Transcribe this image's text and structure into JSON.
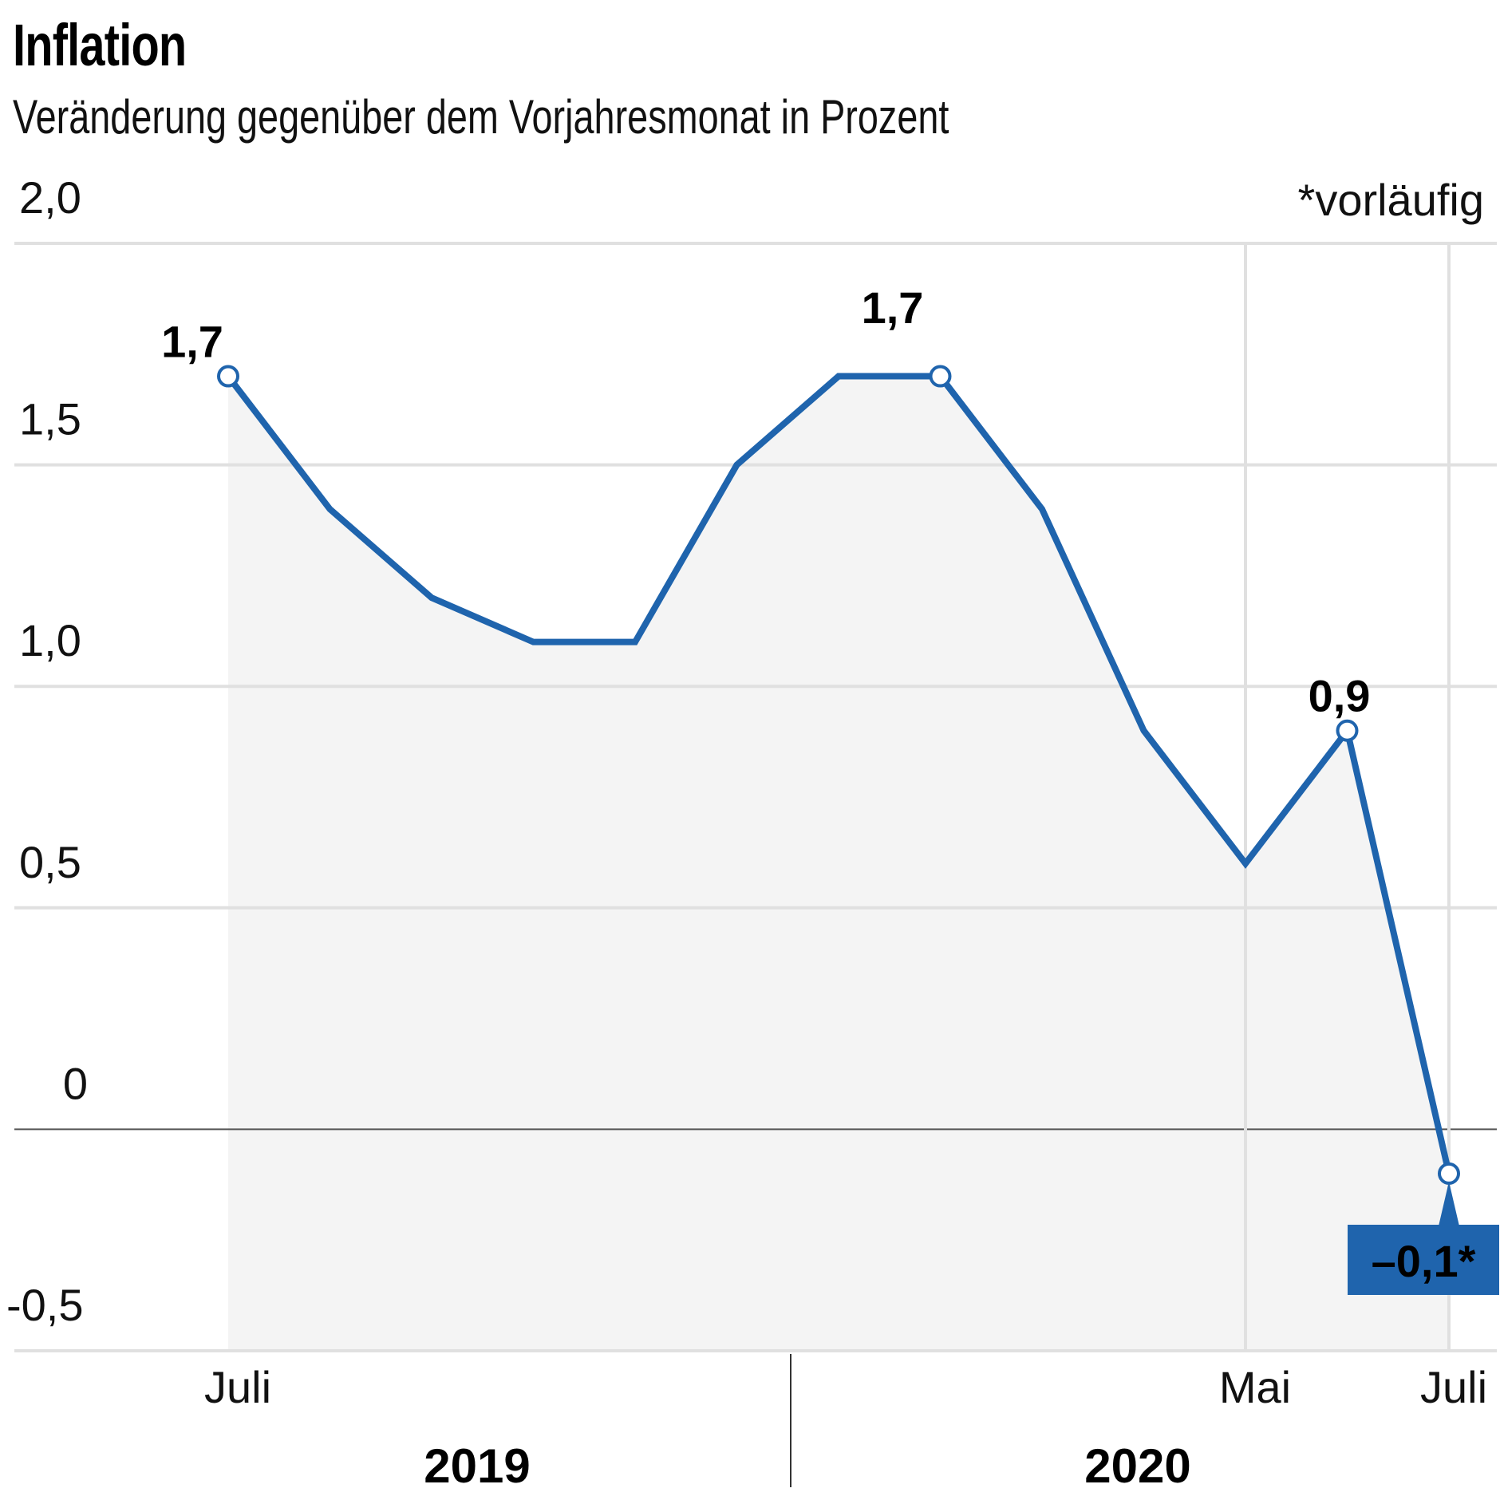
{
  "title": "Inflation",
  "subtitle": "Veränderung gegenüber dem Vorjahresmonat in Prozent",
  "footnote": "*vorläufig",
  "colors": {
    "line": "#1f64ad",
    "fill": "#f4f4f4",
    "grid": "#e0e0e0",
    "label_box": "#1f64ad"
  },
  "chart_data": {
    "type": "area",
    "title": "Inflation",
    "subtitle": "Veränderung gegenüber dem Vorjahresmonat in Prozent",
    "x": [
      "Jul 2019",
      "Aug 2019",
      "Sep 2019",
      "Okt 2019",
      "Nov 2019",
      "Dez 2019",
      "Jan 2020",
      "Feb 2020",
      "Mär 2020",
      "Apr 2020",
      "Mai 2020",
      "Jun 2020",
      "Jul 2020"
    ],
    "values": [
      1.7,
      1.4,
      1.2,
      1.1,
      1.1,
      1.5,
      1.7,
      1.7,
      1.4,
      0.9,
      0.6,
      0.9,
      -0.1
    ],
    "ylim": [
      -0.5,
      2.0
    ],
    "yticks": [
      "2,0",
      "1,5",
      "1,0",
      "0,5",
      "0",
      "-0,5"
    ],
    "ytick_values": [
      2.0,
      1.5,
      1.0,
      0.5,
      0,
      -0.5
    ],
    "xticks": [
      {
        "index": 0,
        "label": "Juli"
      },
      {
        "index": 10,
        "label": "Mai"
      },
      {
        "index": 12,
        "label": "Juli"
      }
    ],
    "years": [
      {
        "label": "2019"
      },
      {
        "label": "2020"
      }
    ],
    "annotations": [
      {
        "index": 0,
        "text": "1,7"
      },
      {
        "index": 7,
        "text": "1,7"
      },
      {
        "index": 11,
        "text": "0,9"
      },
      {
        "index": 12,
        "text": "–0,1*",
        "boxed": true
      }
    ],
    "grid": true
  }
}
